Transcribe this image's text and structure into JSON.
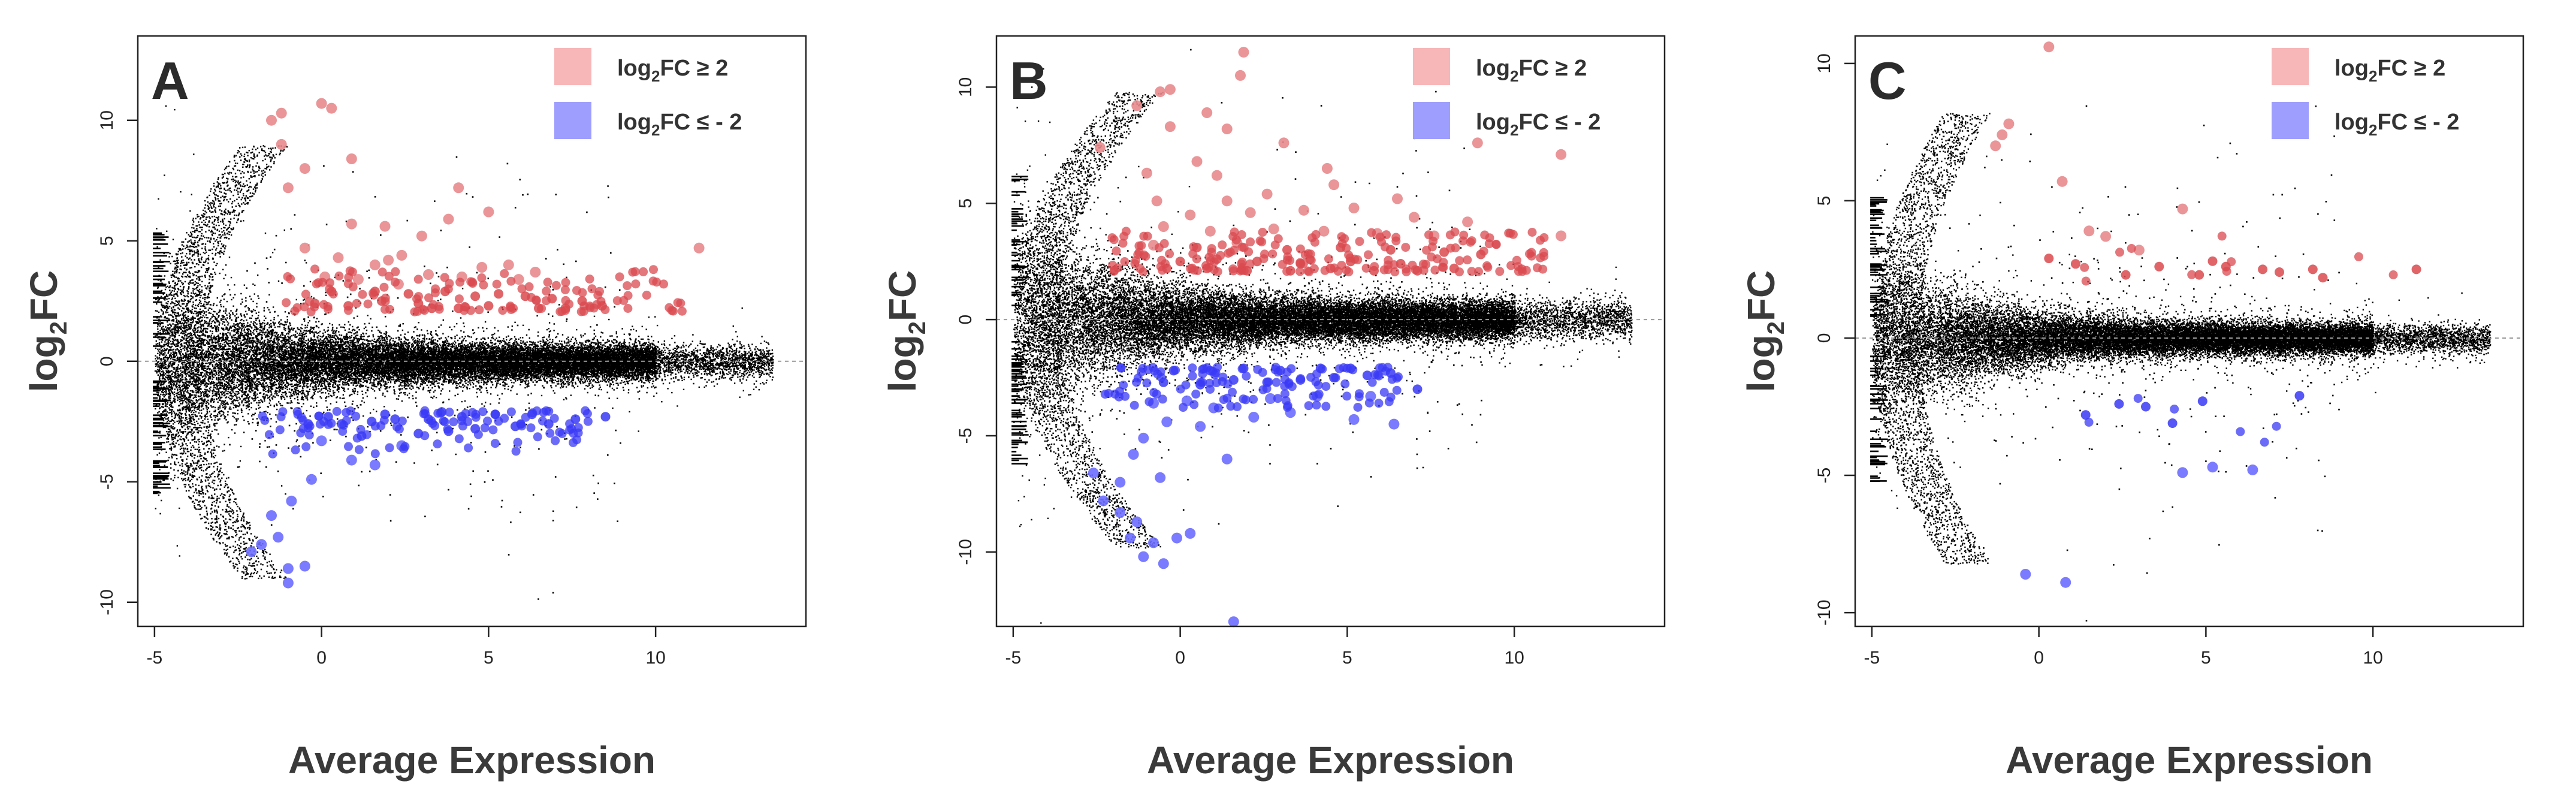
{
  "colors": {
    "up": "#e8898d",
    "up_dense": "#d94a4f",
    "up_legend": "#f7b7b8",
    "down": "#6d6dff",
    "down_dense": "#3a3af5",
    "down_legend": "#9e9eff",
    "background_points": "#000000"
  },
  "shared": {
    "xlabel": "Average Expression",
    "ylabel_main": "log",
    "ylabel_sub": "2",
    "ylabel_tail": "FC",
    "legend_up_main": "log",
    "legend_up_sub": "2",
    "legend_up_tail": "FC ≥ 2",
    "legend_down_main": "log",
    "legend_down_sub": "2",
    "legend_down_tail": "FC ≤ - 2"
  },
  "chart_data": [
    {
      "type": "scatter",
      "panel": "A",
      "title": "",
      "xlabel": "Average Expression",
      "ylabel": "log2FC",
      "xlim": [
        -5.5,
        14.5
      ],
      "ylim": [
        -11,
        13.5
      ],
      "x_ticks": [
        -5,
        0,
        5,
        10
      ],
      "x_tick_labels": [
        "-5",
        "0",
        "5",
        "10"
      ],
      "y_ticks": [
        -10,
        -5,
        0,
        5,
        10
      ],
      "y_tick_labels": [
        "-10",
        "-5",
        "0",
        "5",
        "10"
      ],
      "legend": [
        "log2FC ≥ 2",
        "log2FC ≤ - 2"
      ],
      "legend_position": "top-right",
      "series": [
        {
          "name": "log2FC ≥ 2",
          "points": [
            [
              -1.5,
              10.0
            ],
            [
              -1.2,
              10.3
            ],
            [
              0.0,
              10.7
            ],
            [
              0.3,
              10.5
            ],
            [
              -1.2,
              9.0
            ],
            [
              -0.5,
              8.0
            ],
            [
              0.9,
              8.4
            ],
            [
              -1.0,
              7.2
            ],
            [
              4.1,
              7.2
            ],
            [
              5.0,
              6.2
            ],
            [
              3.8,
              5.9
            ],
            [
              1.9,
              5.6
            ],
            [
              0.9,
              5.7
            ],
            [
              3.0,
              5.2
            ],
            [
              -0.5,
              4.7
            ],
            [
              0.5,
              4.3
            ],
            [
              11.3,
              4.7
            ],
            [
              2.0,
              4.2
            ],
            [
              2.4,
              4.4
            ],
            [
              1.6,
              4.0
            ],
            [
              6.4,
              3.7
            ],
            [
              5.6,
              4.0
            ],
            [
              4.8,
              3.9
            ],
            [
              0.1,
              3.5
            ],
            [
              1.1,
              3.4
            ],
            [
              2.3,
              3.2
            ],
            [
              3.2,
              3.6
            ],
            [
              4.2,
              3.5
            ],
            [
              5.9,
              3.4
            ],
            [
              0.3,
              2.9
            ],
            [
              1.6,
              2.9
            ],
            [
              2.6,
              2.8
            ],
            [
              3.7,
              2.9
            ],
            [
              4.6,
              2.7
            ],
            [
              5.3,
              2.8
            ],
            [
              6.1,
              2.7
            ],
            [
              6.9,
              2.6
            ],
            [
              7.8,
              2.5
            ],
            [
              8.4,
              2.3
            ],
            [
              -0.2,
              2.4
            ],
            [
              0.8,
              2.3
            ],
            [
              1.8,
              2.5
            ],
            [
              2.9,
              2.4
            ],
            [
              3.3,
              2.2
            ],
            [
              4.1,
              2.2
            ],
            [
              5.0,
              2.3
            ],
            [
              6.5,
              2.2
            ],
            [
              7.3,
              2.2
            ]
          ]
        },
        {
          "name": "log2FC ≤ - 2",
          "points": [
            [
              -1.8,
              -7.6
            ],
            [
              -1.3,
              -7.3
            ],
            [
              -2.1,
              -7.9
            ],
            [
              -1.0,
              -8.6
            ],
            [
              -0.5,
              -8.5
            ],
            [
              -1.0,
              -9.2
            ],
            [
              -1.5,
              -6.4
            ],
            [
              -0.9,
              -5.8
            ],
            [
              -0.3,
              -4.9
            ],
            [
              0.9,
              -4.1
            ],
            [
              1.6,
              -4.3
            ],
            [
              2.4,
              -3.5
            ],
            [
              0.0,
              -3.3
            ],
            [
              1.2,
              -3.1
            ],
            [
              2.9,
              -3.0
            ],
            [
              3.8,
              -2.9
            ],
            [
              4.6,
              -2.8
            ],
            [
              5.8,
              -2.7
            ],
            [
              6.8,
              -2.6
            ],
            [
              7.6,
              -2.4
            ],
            [
              8.5,
              -2.3
            ],
            [
              -0.4,
              -2.6
            ],
            [
              0.6,
              -2.6
            ],
            [
              1.5,
              -2.5
            ],
            [
              2.2,
              -2.4
            ],
            [
              3.2,
              -2.4
            ],
            [
              4.2,
              -2.3
            ],
            [
              5.2,
              -2.2
            ],
            [
              6.3,
              -2.2
            ],
            [
              0.2,
              -2.3
            ],
            [
              1.9,
              -2.2
            ],
            [
              3.6,
              -2.1
            ]
          ]
        }
      ]
    },
    {
      "type": "scatter",
      "panel": "B",
      "title": "",
      "xlabel": "Average Expression",
      "ylabel": "log2FC",
      "xlim": [
        -5.5,
        14.5
      ],
      "ylim": [
        -13.2,
        12.2
      ],
      "x_ticks": [
        -5,
        0,
        5,
        10
      ],
      "x_tick_labels": [
        "-5",
        "0",
        "5",
        "10"
      ],
      "y_ticks": [
        -10,
        -5,
        0,
        5,
        10
      ],
      "y_tick_labels": [
        "-10",
        "-5",
        "0",
        "5",
        "10"
      ],
      "legend": [
        "log2FC ≥ 2",
        "log2FC ≤ - 2"
      ],
      "legend_position": "top-right",
      "series": [
        {
          "name": "log2FC ≥ 2",
          "points": [
            [
              1.9,
              11.5
            ],
            [
              1.8,
              10.5
            ],
            [
              -0.6,
              9.8
            ],
            [
              -0.3,
              9.9
            ],
            [
              -1.3,
              9.2
            ],
            [
              0.8,
              8.9
            ],
            [
              -2.4,
              7.4
            ],
            [
              -0.3,
              8.3
            ],
            [
              7.9,
              8.1
            ],
            [
              1.4,
              8.2
            ],
            [
              3.1,
              7.6
            ],
            [
              8.9,
              7.6
            ],
            [
              11.4,
              7.1
            ],
            [
              0.5,
              6.8
            ],
            [
              -1.0,
              6.3
            ],
            [
              1.1,
              6.2
            ],
            [
              4.4,
              6.5
            ],
            [
              4.6,
              5.8
            ],
            [
              2.6,
              5.4
            ],
            [
              1.4,
              5.1
            ],
            [
              -0.7,
              5.1
            ],
            [
              6.5,
              5.2
            ],
            [
              0.3,
              4.5
            ],
            [
              2.1,
              4.6
            ],
            [
              3.7,
              4.7
            ],
            [
              5.2,
              4.8
            ],
            [
              7.0,
              4.4
            ],
            [
              8.6,
              4.2
            ],
            [
              -0.5,
              4.0
            ],
            [
              0.9,
              3.8
            ],
            [
              2.8,
              3.9
            ],
            [
              4.3,
              3.8
            ],
            [
              5.9,
              3.7
            ],
            [
              7.6,
              3.6
            ],
            [
              11.4,
              3.6
            ],
            [
              -0.8,
              3.2
            ],
            [
              0.5,
              3.1
            ],
            [
              1.7,
              3.3
            ],
            [
              3.2,
              3.0
            ],
            [
              4.8,
              3.1
            ],
            [
              6.3,
              3.0
            ],
            [
              7.9,
              2.9
            ],
            [
              9.0,
              2.8
            ],
            [
              0.0,
              2.5
            ],
            [
              1.1,
              2.6
            ],
            [
              2.3,
              2.5
            ],
            [
              3.6,
              2.4
            ],
            [
              5.1,
              2.5
            ],
            [
              6.6,
              2.4
            ],
            [
              8.2,
              2.2
            ],
            [
              -0.4,
              2.2
            ],
            [
              0.8,
              2.2
            ],
            [
              2.0,
              2.1
            ],
            [
              3.3,
              2.1
            ],
            [
              4.5,
              2.2
            ],
            [
              5.8,
              2.1
            ],
            [
              7.1,
              2.1
            ]
          ]
        },
        {
          "name": "log2FC ≤ - 2",
          "points": [
            [
              1.6,
              -13.0
            ],
            [
              -0.5,
              -10.5
            ],
            [
              -1.1,
              -10.2
            ],
            [
              -1.5,
              -9.4
            ],
            [
              -0.8,
              -9.6
            ],
            [
              -0.1,
              -9.4
            ],
            [
              0.3,
              -9.2
            ],
            [
              -2.3,
              -7.8
            ],
            [
              -1.8,
              -8.3
            ],
            [
              -1.3,
              -8.7
            ],
            [
              -1.8,
              -7.0
            ],
            [
              -2.6,
              -6.6
            ],
            [
              -0.6,
              -6.8
            ],
            [
              -1.4,
              -5.8
            ],
            [
              -1.1,
              -5.1
            ],
            [
              1.4,
              -6.0
            ],
            [
              -0.4,
              -4.4
            ],
            [
              0.6,
              -4.6
            ],
            [
              2.2,
              -4.2
            ],
            [
              3.3,
              -4.0
            ],
            [
              5.2,
              -4.3
            ],
            [
              6.4,
              -4.5
            ],
            [
              -0.8,
              -3.6
            ],
            [
              0.2,
              -3.5
            ],
            [
              1.0,
              -3.8
            ],
            [
              2.7,
              -3.4
            ],
            [
              4.1,
              -3.3
            ],
            [
              5.7,
              -3.3
            ],
            [
              7.1,
              -3.0
            ],
            [
              -0.5,
              -2.7
            ],
            [
              0.6,
              -2.8
            ],
            [
              1.6,
              -2.6
            ],
            [
              2.6,
              -2.7
            ],
            [
              3.6,
              -2.6
            ],
            [
              4.6,
              -2.5
            ],
            [
              5.6,
              -2.4
            ],
            [
              6.3,
              -2.3
            ],
            [
              -0.2,
              -2.2
            ],
            [
              0.9,
              -2.2
            ],
            [
              1.9,
              -2.1
            ],
            [
              3.0,
              -2.2
            ],
            [
              4.2,
              -2.1
            ],
            [
              5.1,
              -2.1
            ]
          ]
        }
      ]
    },
    {
      "type": "scatter",
      "panel": "C",
      "title": "",
      "xlabel": "Average Expression",
      "ylabel": "log2FC",
      "xlim": [
        -5.5,
        14.5
      ],
      "ylim": [
        -10.5,
        11.0
      ],
      "x_ticks": [
        -5,
        0,
        5,
        10
      ],
      "x_tick_labels": [
        "-5",
        "0",
        "5",
        "10"
      ],
      "y_ticks": [
        -10,
        -5,
        0,
        5,
        10
      ],
      "y_tick_labels": [
        "-10",
        "-5",
        "0",
        "5",
        "10"
      ],
      "legend": [
        "log2FC ≥ 2",
        "log2FC ≤ - 2"
      ],
      "legend_position": "top-right",
      "series": [
        {
          "name": "log2FC ≥ 2",
          "points": [
            [
              0.3,
              10.6
            ],
            [
              -1.1,
              7.4
            ],
            [
              -0.9,
              7.8
            ],
            [
              -1.3,
              7.0
            ],
            [
              0.7,
              5.7
            ],
            [
              4.3,
              4.7
            ],
            [
              1.5,
              3.9
            ],
            [
              3.0,
              3.2
            ],
            [
              2.0,
              3.7
            ],
            [
              0.3,
              2.9
            ],
            [
              1.1,
              2.7
            ],
            [
              5.2,
              2.8
            ],
            [
              5.6,
              2.6
            ],
            [
              6.7,
              2.5
            ],
            [
              7.2,
              2.4
            ],
            [
              8.2,
              2.5
            ],
            [
              8.5,
              2.2
            ],
            [
              11.3,
              2.5
            ],
            [
              2.6,
              2.3
            ],
            [
              3.6,
              2.6
            ],
            [
              4.8,
              2.3
            ]
          ]
        },
        {
          "name": "log2FC ≤ - 2",
          "points": [
            [
              -0.4,
              -8.6
            ],
            [
              0.8,
              -8.9
            ],
            [
              2.4,
              -2.4
            ],
            [
              3.2,
              -2.5
            ],
            [
              4.0,
              -3.1
            ],
            [
              4.9,
              -2.3
            ],
            [
              1.4,
              -2.8
            ],
            [
              4.3,
              -4.9
            ],
            [
              5.2,
              -4.7
            ],
            [
              6.4,
              -4.8
            ],
            [
              7.8,
              -2.1
            ]
          ]
        }
      ]
    }
  ]
}
